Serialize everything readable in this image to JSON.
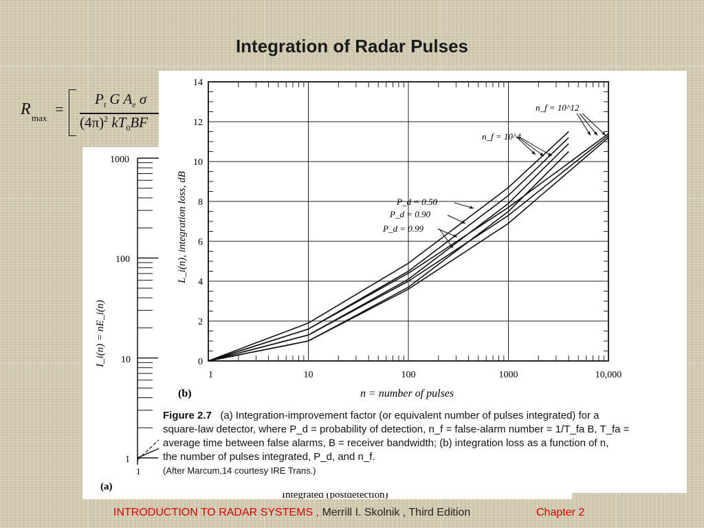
{
  "slide": {
    "title": "Integration of Radar Pulses",
    "footer_book": "INTRODUCTION  TO  RADAR SYSTEMS ,",
    "footer_author": " Merrill I. Skolnik , Third Edition",
    "footer_chapter": "Chapter 2",
    "colors": {
      "background": "#d6ceb4",
      "footer_accent": "#d40000"
    }
  },
  "formula": {
    "lhs": "R",
    "lhs_sub": "max",
    "equals": "=",
    "numerator": "P",
    "numerator_sub_t": "t",
    "numerator_rest": " G A",
    "numerator_sub_e": "e",
    "numerator_sigma": " σ",
    "denominator": "(4π)",
    "denominator_exp": "2",
    "denominator_rest": " kT",
    "denominator_sub": "0",
    "denominator_end": "BF"
  },
  "panel_a": {
    "label": "(a)",
    "ylabel": "I_i(n) = nE_i(n)",
    "yticks": [
      "1000",
      "100",
      "10",
      "1"
    ],
    "xtick": "1",
    "partial_caption": "Integrated (postdetection)"
  },
  "chart_data": {
    "type": "line",
    "panel_label": "(b)",
    "xlabel": "n = number of pulses",
    "ylabel": "L_i(n), integration loss, dB",
    "x_scale": "log",
    "xlim": [
      1,
      10000
    ],
    "ylim": [
      0,
      14
    ],
    "xticks": [
      "1",
      "10",
      "100",
      "1000",
      "10,000"
    ],
    "yticks": [
      "0",
      "2",
      "4",
      "6",
      "8",
      "10",
      "12",
      "14"
    ],
    "grid": true,
    "annotations": {
      "nf12": "n_f = 10^12",
      "nf4": "n_f = 10^4",
      "pd50": "P_d = 0.50",
      "pd90": "P_d = 0.90",
      "pd99": "P_d = 0.99"
    },
    "series": [
      {
        "x": [
          1,
          10,
          100,
          1000,
          4000
        ],
        "y": [
          0,
          1.9,
          4.9,
          8.7,
          11.5
        ]
      },
      {
        "x": [
          1,
          10,
          100,
          1000,
          4000
        ],
        "y": [
          0,
          1.6,
          4.5,
          8.3,
          11.2
        ]
      },
      {
        "x": [
          1,
          10,
          100,
          1000,
          4000
        ],
        "y": [
          0,
          1.3,
          4.1,
          7.9,
          10.9
        ]
      },
      {
        "x": [
          1,
          10,
          100,
          1000,
          4000
        ],
        "y": [
          0,
          1.0,
          3.7,
          7.5,
          10.5
        ]
      },
      {
        "x": [
          1,
          10,
          100,
          1000,
          10000
        ],
        "y": [
          0,
          1.6,
          4.4,
          7.7,
          11.4
        ]
      },
      {
        "x": [
          1,
          10,
          100,
          1000,
          10000
        ],
        "y": [
          0,
          1.3,
          4.0,
          7.3,
          11.3
        ]
      },
      {
        "x": [
          1,
          10,
          100,
          1000,
          10000
        ],
        "y": [
          0,
          1.0,
          3.6,
          6.9,
          11.2
        ]
      }
    ]
  },
  "caption": {
    "figure": "Figure 2.7",
    "line1": "(a) Integration-improvement factor (or equivalent number of pulses integrated) for a",
    "line2": "square-law detector, where P_d = probability of detection, n_f = false-alarm number = 1/T_fa B, T_fa =",
    "line3": "average time between false alarms, B = receiver bandwidth; (b) integration loss as a function of n,",
    "line4": "the number of pulses integrated, P_d, and n_f.",
    "line5": "(After Marcum,14 courtesy IRE Trans.)"
  }
}
